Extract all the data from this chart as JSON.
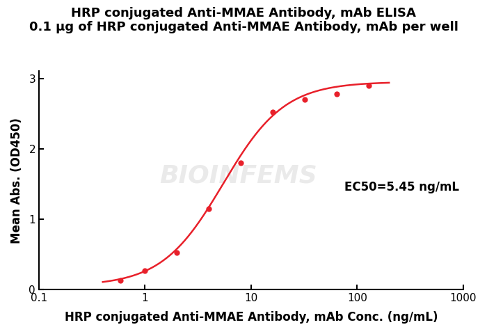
{
  "title_line1": "HRP conjugated Anti-MMAE Antibody, mAb ELISA",
  "title_line2": "0.1 μg of HRP conjugated Anti-MMAE Antibody, mAb per well",
  "xlabel": "HRP conjugated Anti-MMAE Antibody, mAb Conc. (ng/mL)",
  "ylabel": "Mean Abs. (OD450)",
  "x_data": [
    0.585,
    1.0,
    2.0,
    4.0,
    8.0,
    16.0,
    32.0,
    64.0,
    128.0
  ],
  "y_data": [
    0.13,
    0.265,
    0.52,
    1.15,
    1.8,
    2.52,
    2.7,
    2.78,
    2.9
  ],
  "curve_color": "#E8202A",
  "dot_color": "#E8202A",
  "ec50": 5.45,
  "ec50_text": "EC50=5.45 ng/mL",
  "xlim": [
    0.1,
    1000
  ],
  "ylim": [
    0,
    3.1
  ],
  "yticks": [
    0,
    1,
    2,
    3
  ],
  "xticks": [
    0.1,
    1,
    10,
    100,
    1000
  ],
  "title_fontsize": 13,
  "label_fontsize": 12,
  "tick_fontsize": 11,
  "ec50_fontsize": 12,
  "background_color": "#ffffff",
  "watermark": "BIOINFEMS",
  "watermark_color": "#cccccc",
  "watermark_alpha": 0.4,
  "watermark_fontsize": 26
}
